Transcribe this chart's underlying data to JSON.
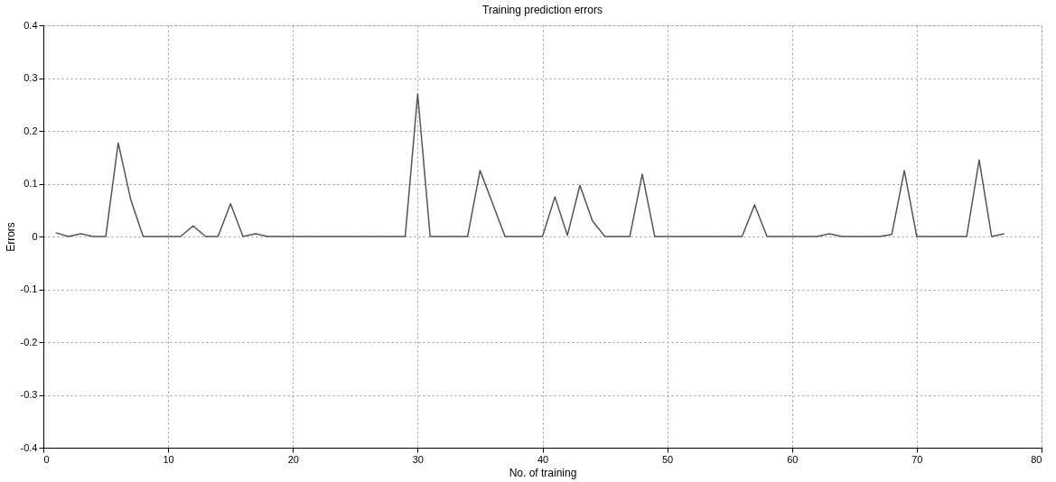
{
  "chart_data": {
    "type": "line",
    "title": "Training prediction errors",
    "xlabel": "No. of training",
    "ylabel": "Errors",
    "x": [
      1,
      2,
      3,
      4,
      5,
      6,
      7,
      8,
      9,
      10,
      11,
      12,
      13,
      14,
      15,
      16,
      17,
      18,
      19,
      20,
      21,
      22,
      23,
      24,
      25,
      26,
      27,
      28,
      29,
      30,
      31,
      32,
      33,
      34,
      35,
      36,
      37,
      38,
      39,
      40,
      41,
      42,
      43,
      44,
      45,
      46,
      47,
      48,
      49,
      50,
      51,
      52,
      53,
      54,
      55,
      56,
      57,
      58,
      59,
      60,
      61,
      62,
      63,
      64,
      65,
      66,
      67,
      68,
      69,
      70,
      71,
      72,
      73,
      74,
      75,
      76,
      77
    ],
    "series": [
      {
        "color": "#555555",
        "values": [
          0.007,
          0,
          0.005,
          0,
          0,
          0.177,
          0.07,
          0,
          0,
          0,
          0,
          0.02,
          0,
          0,
          0.062,
          0,
          0.005,
          0,
          0,
          0,
          0,
          0,
          0,
          0,
          0,
          0,
          0,
          0,
          0,
          0.27,
          0,
          0,
          0,
          0,
          0.125,
          0.063,
          0,
          0,
          0,
          0,
          0.075,
          0.002,
          0.097,
          0.03,
          0,
          0,
          0,
          0.118,
          0,
          0,
          0,
          0,
          0,
          0,
          0,
          0,
          0.06,
          0,
          0,
          0,
          0,
          0,
          0.005,
          0,
          0,
          0,
          0,
          0.004,
          0.125,
          0,
          0,
          0,
          0,
          0,
          0.145,
          0,
          0.005
        ]
      }
    ],
    "xlim": [
      0,
      80
    ],
    "xticks": [
      0,
      10,
      20,
      30,
      40,
      50,
      60,
      70,
      80
    ],
    "ylim": [
      -0.4,
      0.4
    ],
    "yticks": [
      -0.4,
      -0.3,
      -0.2,
      -0.1,
      0,
      0.1,
      0.2,
      0.3,
      0.4
    ],
    "grid": true,
    "legend": false,
    "marker": "none",
    "line_style": "solid"
  }
}
